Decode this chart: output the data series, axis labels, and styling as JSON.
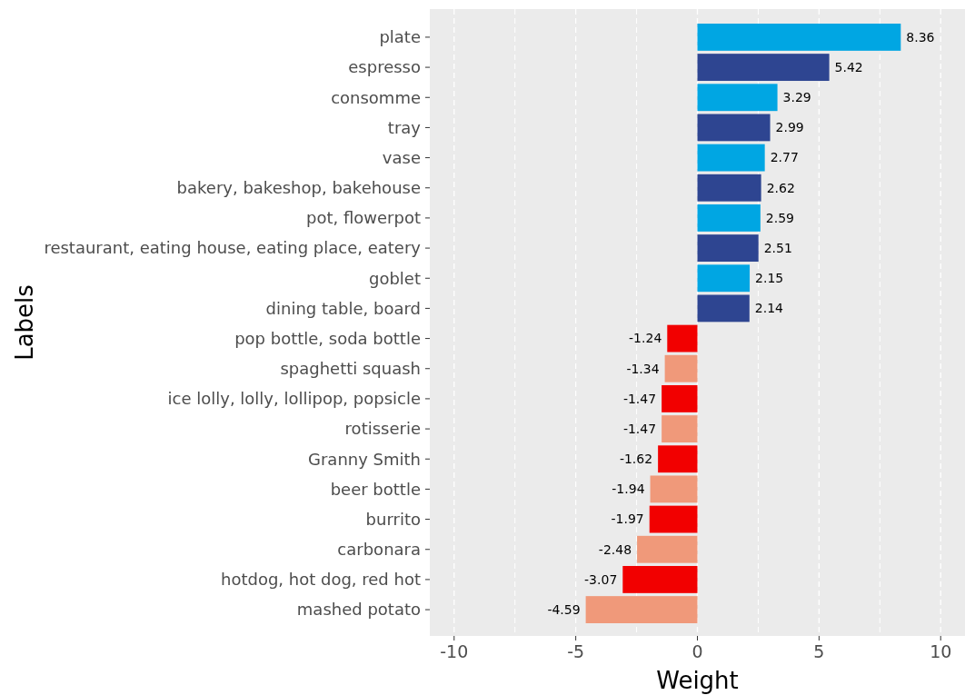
{
  "chart_data": {
    "type": "bar",
    "orientation": "horizontal",
    "xlabel": "Weight",
    "ylabel": "Labels",
    "categories": [
      "plate",
      "espresso",
      "consomme",
      "tray",
      "vase",
      "bakery, bakeshop, bakehouse",
      "pot, flowerpot",
      "restaurant, eating house, eating place, eatery",
      "goblet",
      "dining table, board",
      "pop bottle, soda bottle",
      "spaghetti squash",
      "ice lolly, lolly, lollipop, popsicle",
      "rotisserie",
      "Granny Smith",
      "beer bottle",
      "burrito",
      "carbonara",
      "hotdog, hot dog, red hot",
      "mashed potato"
    ],
    "values": [
      8.36,
      5.42,
      3.29,
      2.99,
      2.77,
      2.62,
      2.59,
      2.51,
      2.15,
      2.14,
      -1.24,
      -1.34,
      -1.47,
      -1.47,
      -1.62,
      -1.94,
      -1.97,
      -2.48,
      -3.07,
      -4.59
    ],
    "colors": [
      "#00a6e3",
      "#2e4591",
      "#00a6e3",
      "#2e4591",
      "#00a6e3",
      "#2e4591",
      "#00a6e3",
      "#2e4591",
      "#00a6e3",
      "#2e4591",
      "#f20000",
      "#f0997a",
      "#f20000",
      "#f0997a",
      "#f20000",
      "#f0997a",
      "#f20000",
      "#f0997a",
      "#f20000",
      "#f0997a"
    ],
    "xlim": [
      -11,
      11
    ],
    "xticks": [
      -10,
      {
        "value": -7.5,
        "label": null
      },
      -5,
      {
        "value": -2.5,
        "label": null
      },
      0,
      {
        "value": 2.5,
        "label": null
      },
      5,
      {
        "value": 7.5,
        "label": null
      },
      10
    ],
    "grid": "x",
    "data_labels": true
  }
}
